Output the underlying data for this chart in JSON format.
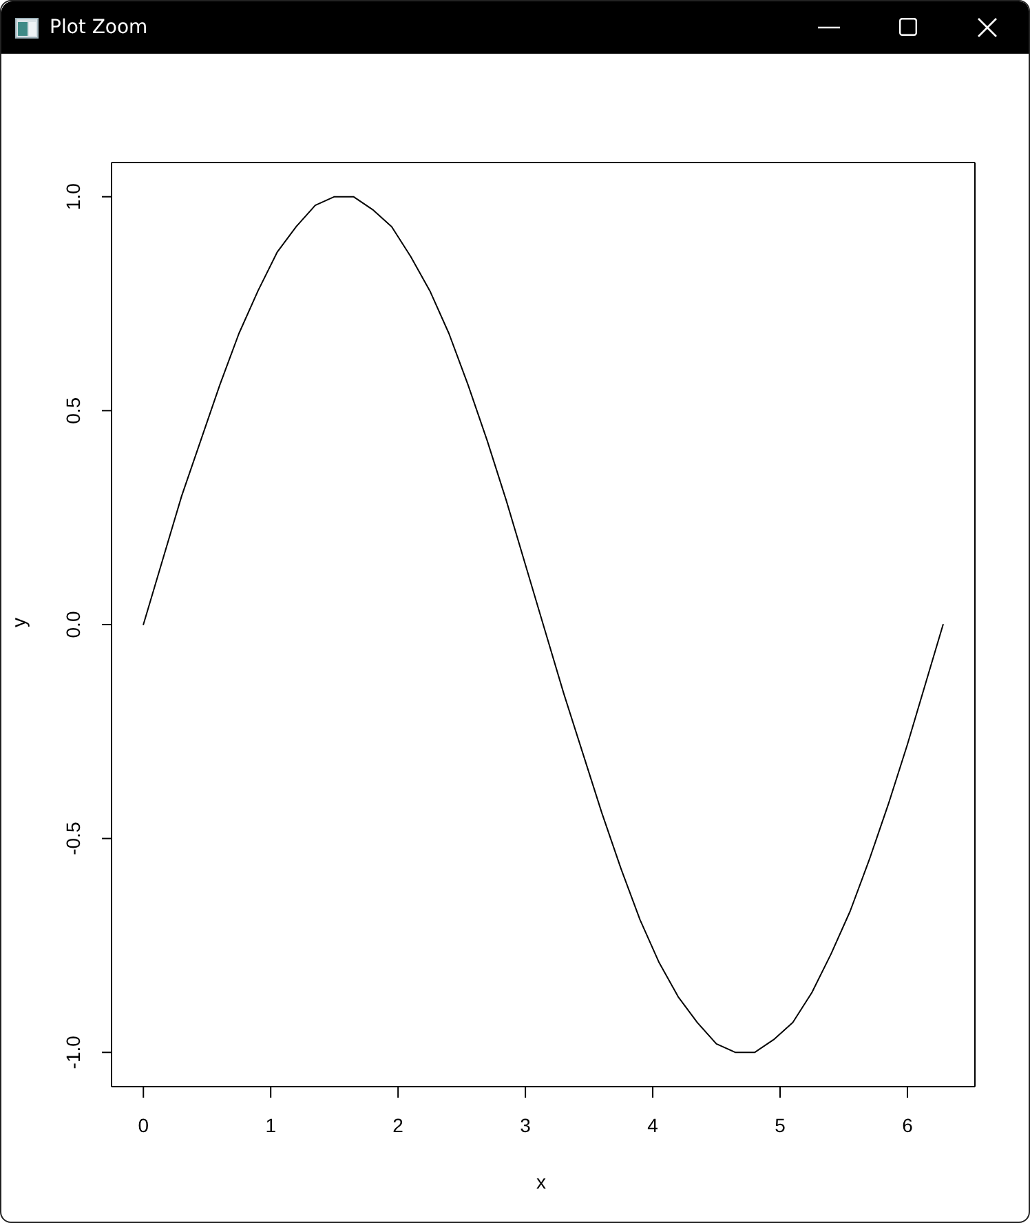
{
  "chart_data": {
    "type": "line",
    "xlabel": "x",
    "ylabel": "y",
    "annotations": [
      "Plot Zoom"
    ],
    "x": [
      0,
      0.15,
      0.3,
      0.45,
      0.6,
      0.75,
      0.9,
      1.05,
      1.2,
      1.35,
      1.5,
      1.65,
      1.8,
      1.95,
      2.1,
      2.25,
      2.4,
      2.55,
      2.7,
      2.85,
      3,
      3.15,
      3.3,
      3.45,
      3.6,
      3.75,
      3.9,
      4.05,
      4.2,
      4.35,
      4.5,
      4.65,
      4.8,
      4.95,
      5.1,
      5.25,
      5.4,
      5.55,
      5.7,
      5.85,
      6,
      6.15,
      6.28
    ],
    "values": [
      0,
      0.15,
      0.3,
      0.43,
      0.56,
      0.68,
      0.78,
      0.87,
      0.93,
      0.98,
      1,
      1,
      0.97,
      0.93,
      0.86,
      0.78,
      0.68,
      0.56,
      0.43,
      0.29,
      0.14,
      -0.01,
      -0.16,
      -0.3,
      -0.44,
      -0.57,
      -0.69,
      -0.79,
      -0.87,
      -0.93,
      -0.98,
      -1,
      -1,
      -0.97,
      -0.93,
      -0.86,
      -0.77,
      -0.67,
      -0.55,
      -0.42,
      -0.28,
      -0.13,
      0
    ],
    "color": "#000000",
    "xlim": [
      -0.25,
      6.53
    ],
    "ylim": [
      -1.08,
      1.08
    ],
    "xticks": [
      0,
      1,
      2,
      3,
      4,
      5,
      6
    ],
    "yticks": [
      {
        "value": -1,
        "label": "-1.0"
      },
      {
        "value": -0.5,
        "label": "-0.5"
      },
      {
        "value": 0,
        "label": "0.0"
      },
      {
        "value": 0.5,
        "label": "0.5"
      },
      {
        "value": 1,
        "label": "1.0"
      }
    ]
  }
}
